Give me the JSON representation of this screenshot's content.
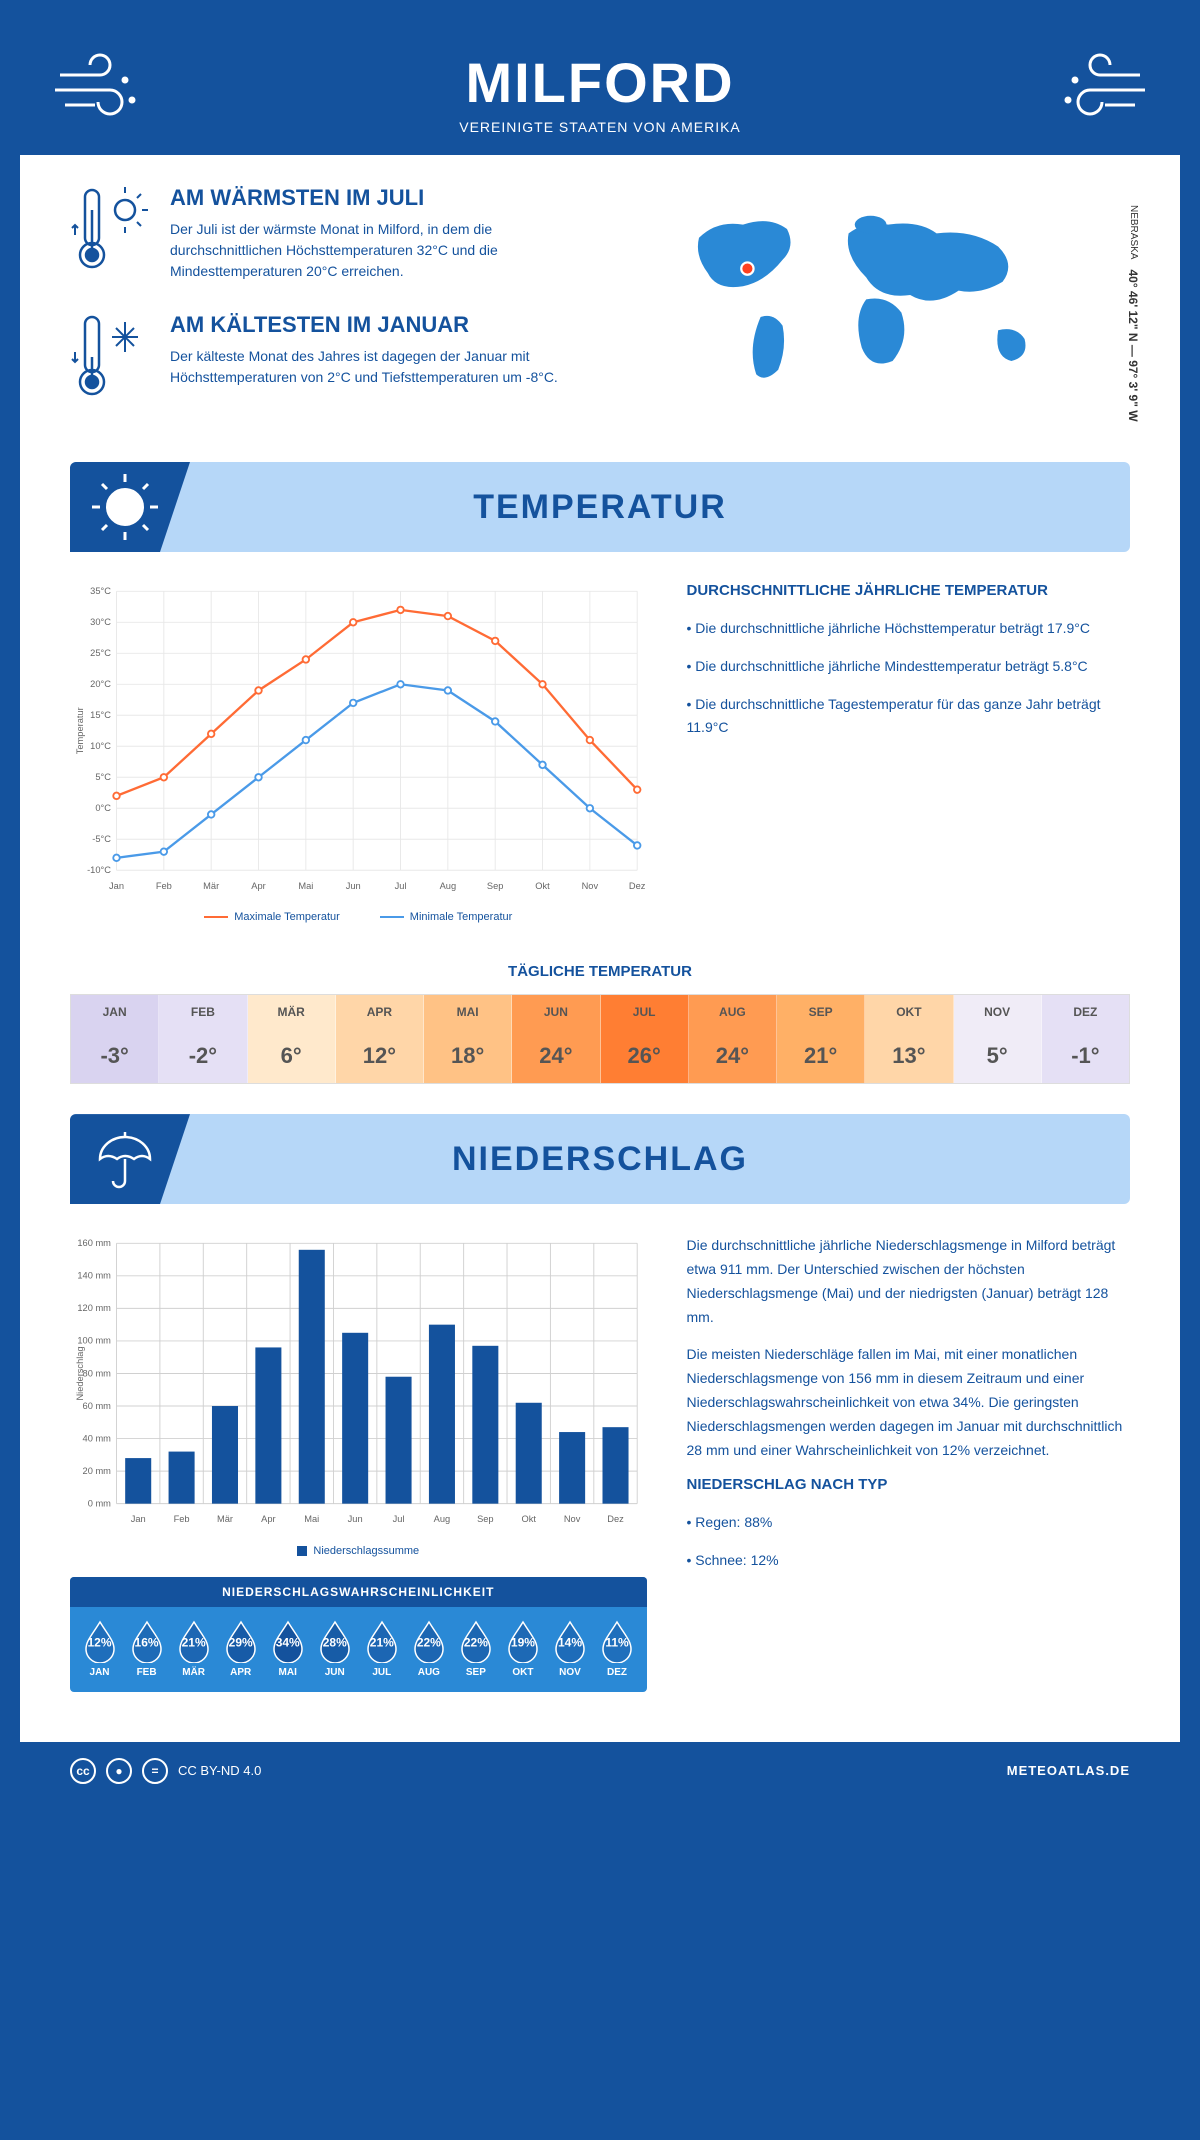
{
  "header": {
    "title": "MILFORD",
    "subtitle": "VEREINIGTE STAATEN VON AMERIKA"
  },
  "colors": {
    "primary": "#14529d",
    "lightblue": "#b6d7f8",
    "accent": "#2a89d6",
    "orange": "#ff6b35",
    "chartblue": "#4a9ae8"
  },
  "coords": {
    "text": "40° 46' 12\" N — 97° 3' 9\" W",
    "region": "NEBRASKA"
  },
  "facts": {
    "warm": {
      "title": "AM WÄRMSTEN IM JULI",
      "text": "Der Juli ist der wärmste Monat in Milford, in dem die durchschnittlichen Höchsttemperaturen 32°C und die Mindesttemperaturen 20°C erreichen."
    },
    "cold": {
      "title": "AM KÄLTESTEN IM JANUAR",
      "text": "Der kälteste Monat des Jahres ist dagegen der Januar mit Höchsttemperaturen von 2°C und Tiefsttemperaturen um -8°C."
    }
  },
  "temp_section": {
    "title": "TEMPERATUR"
  },
  "temp_chart": {
    "type": "line",
    "months": [
      "Jan",
      "Feb",
      "Mär",
      "Apr",
      "Mai",
      "Jun",
      "Jul",
      "Aug",
      "Sep",
      "Okt",
      "Nov",
      "Dez"
    ],
    "max": [
      2,
      5,
      12,
      19,
      24,
      30,
      32,
      31,
      27,
      20,
      11,
      3
    ],
    "min": [
      -8,
      -7,
      -1,
      5,
      11,
      17,
      20,
      19,
      14,
      7,
      0,
      -6
    ],
    "max_color": "#ff6b35",
    "min_color": "#4a9ae8",
    "ylabel": "Temperatur",
    "ymin": -10,
    "ymax": 35,
    "ystep": 5,
    "legend_max": "Maximale Temperatur",
    "legend_min": "Minimale Temperatur",
    "grid_color": "#e8e8e8"
  },
  "temp_text": {
    "heading": "DURCHSCHNITTLICHE JÄHRLICHE TEMPERATUR",
    "b1": "• Die durchschnittliche jährliche Höchsttemperatur beträgt 17.9°C",
    "b2": "• Die durchschnittliche jährliche Mindesttemperatur beträgt 5.8°C",
    "b3": "• Die durchschnittliche Tagestemperatur für das ganze Jahr beträgt 11.9°C"
  },
  "daily": {
    "title": "TÄGLICHE TEMPERATUR",
    "months": [
      "JAN",
      "FEB",
      "MÄR",
      "APR",
      "MAI",
      "JUN",
      "JUL",
      "AUG",
      "SEP",
      "OKT",
      "NOV",
      "DEZ"
    ],
    "values": [
      "-3°",
      "-2°",
      "6°",
      "12°",
      "18°",
      "24°",
      "26°",
      "24°",
      "21°",
      "13°",
      "5°",
      "-1°"
    ],
    "bg": [
      "#d9d3f0",
      "#e5e0f5",
      "#ffe9cc",
      "#ffd6a8",
      "#ffc285",
      "#ff9b52",
      "#ff7e33",
      "#ff9b52",
      "#ffb066",
      "#ffd6a8",
      "#f0ecf7",
      "#e5e0f5"
    ]
  },
  "precip_section": {
    "title": "NIEDERSCHLAG"
  },
  "precip_chart": {
    "type": "bar",
    "months": [
      "Jan",
      "Feb",
      "Mär",
      "Apr",
      "Mai",
      "Jun",
      "Jul",
      "Aug",
      "Sep",
      "Okt",
      "Nov",
      "Dez"
    ],
    "values": [
      28,
      32,
      60,
      96,
      156,
      105,
      78,
      110,
      97,
      62,
      44,
      47
    ],
    "bar_color": "#14529d",
    "ylabel": "Niederschlag",
    "ymax": 160,
    "ystep": 20,
    "legend": "Niederschlagssumme",
    "grid_color": "#d0d0d0"
  },
  "precip_text": {
    "p1": "Die durchschnittliche jährliche Niederschlagsmenge in Milford beträgt etwa 911 mm. Der Unterschied zwischen der höchsten Niederschlagsmenge (Mai) und der niedrigsten (Januar) beträgt 128 mm.",
    "p2": "Die meisten Niederschläge fallen im Mai, mit einer monatlichen Niederschlagsmenge von 156 mm in diesem Zeitraum und einer Niederschlagswahrscheinlichkeit von etwa 34%. Die geringsten Niederschlagsmengen werden dagegen im Januar mit durchschnittlich 28 mm und einer Wahrscheinlichkeit von 12% verzeichnet.",
    "type_heading": "NIEDERSCHLAG NACH TYP",
    "type1": "• Regen: 88%",
    "type2": "• Schnee: 12%"
  },
  "precip_prob": {
    "title": "NIEDERSCHLAGSWAHRSCHEINLICHKEIT",
    "months": [
      "JAN",
      "FEB",
      "MÄR",
      "APR",
      "MAI",
      "JUN",
      "JUL",
      "AUG",
      "SEP",
      "OKT",
      "NOV",
      "DEZ"
    ],
    "pct": [
      "12%",
      "16%",
      "21%",
      "29%",
      "34%",
      "28%",
      "21%",
      "22%",
      "22%",
      "19%",
      "14%",
      "11%"
    ],
    "shade": [
      0.35,
      0.42,
      0.52,
      0.8,
      1.0,
      0.78,
      0.52,
      0.54,
      0.54,
      0.48,
      0.38,
      0.33
    ]
  },
  "footer": {
    "license": "CC BY-ND 4.0",
    "site": "METEOATLAS.DE"
  }
}
